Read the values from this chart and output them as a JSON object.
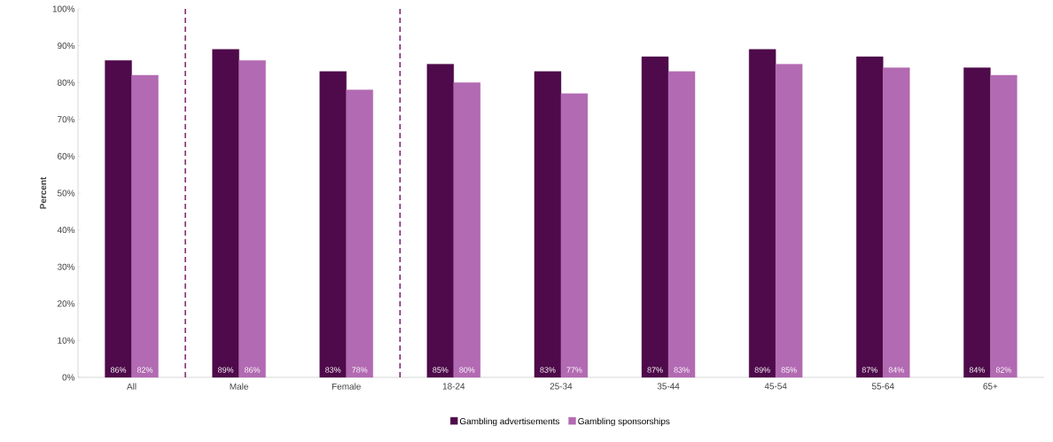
{
  "chart_data": {
    "type": "bar",
    "ylabel": "Percent",
    "categories": [
      "All",
      "Male",
      "Female",
      "18-24",
      "25-34",
      "35-44",
      "45-54",
      "55-64",
      "65+"
    ],
    "series": [
      {
        "name": "Gambling advertisements",
        "color": "#4e0a4a",
        "values": [
          86,
          89,
          83,
          85,
          83,
          87,
          89,
          87,
          84
        ],
        "value_labels": [
          "86%",
          "89%",
          "83%",
          "85%",
          "83%",
          "87%",
          "89%",
          "87%",
          "84%"
        ]
      },
      {
        "name": "Gambling sponsorships",
        "color": "#b26ab2",
        "values": [
          82,
          86,
          78,
          80,
          77,
          83,
          85,
          84,
          82
        ],
        "value_labels": [
          "82%",
          "86%",
          "78%",
          "80%",
          "77%",
          "83%",
          "85%",
          "84%",
          "82%"
        ]
      }
    ],
    "ylim": [
      0,
      100
    ],
    "yticks": [
      {
        "value": 0,
        "label": "0%"
      },
      {
        "value": 10,
        "label": "10%"
      },
      {
        "value": 20,
        "label": "20%"
      },
      {
        "value": 30,
        "label": "30%"
      },
      {
        "value": 40,
        "label": "40%"
      },
      {
        "value": 50,
        "label": "50%"
      },
      {
        "value": 60,
        "label": "60%"
      },
      {
        "value": 70,
        "label": "70%"
      },
      {
        "value": 80,
        "label": "80%"
      },
      {
        "value": 90,
        "label": "90%"
      },
      {
        "value": 100,
        "label": "100%"
      }
    ],
    "grid": false,
    "legend": "bottom"
  }
}
